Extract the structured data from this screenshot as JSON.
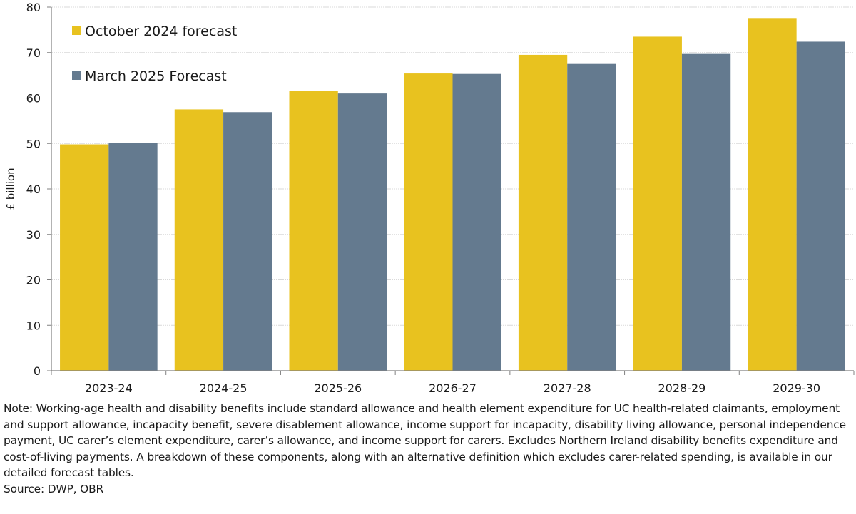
{
  "chart_data": {
    "type": "bar",
    "title": "",
    "xlabel": "",
    "ylabel": "£ billion",
    "ylim": [
      0,
      80
    ],
    "yticks": [
      0,
      10,
      20,
      30,
      40,
      50,
      60,
      70,
      80
    ],
    "grid": true,
    "legend_position": "top-left",
    "categories": [
      "2023-24",
      "2024-25",
      "2025-26",
      "2026-27",
      "2027-28",
      "2028-29",
      "2029-30"
    ],
    "series": [
      {
        "name": "October 2024 forecast",
        "color": "#E8C21F",
        "values": [
          49.8,
          57.5,
          61.6,
          65.4,
          69.5,
          73.5,
          77.6
        ]
      },
      {
        "name": "March 2025 Forecast",
        "color": "#647A8F",
        "values": [
          50.1,
          56.9,
          61.0,
          65.3,
          67.5,
          69.7,
          72.4
        ]
      }
    ]
  },
  "note": {
    "text": "Note: Working-age health and disability benefits include standard allowance and health element expenditure for UC health-related claimants, employment and support allowance, incapacity benefit, severe disablement allowance, income support for incapacity, disability living allowance, personal independence payment, UC carer’s element expenditure, carer’s allowance, and income support for carers. Excludes Northern Ireland disability benefits expenditure and cost-of-living payments. A breakdown of these components, along with an alternative definition which excludes carer-related spending, is available in our detailed forecast tables.",
    "source": "Source: DWP, OBR"
  }
}
